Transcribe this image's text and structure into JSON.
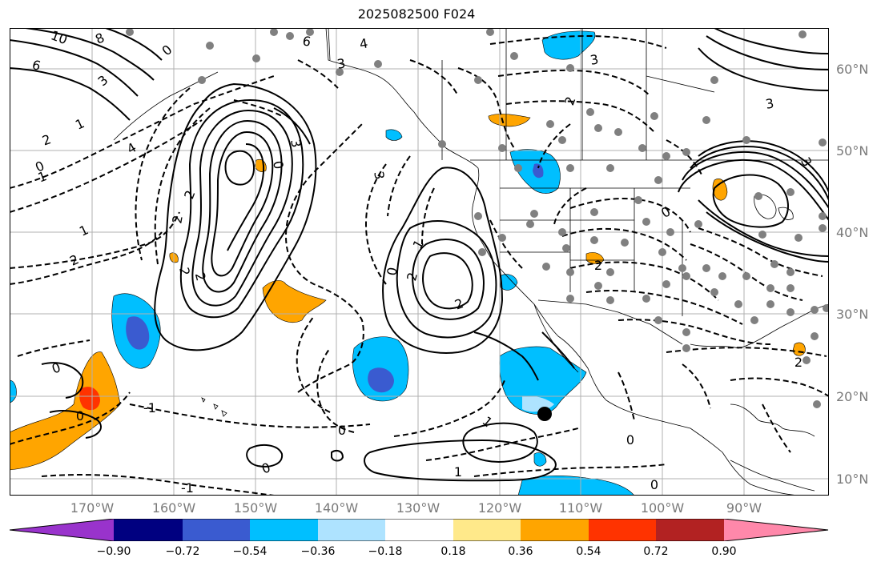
{
  "title": "2025082500 F024",
  "lat_labels": [
    "60°N",
    "50°N",
    "40°N",
    "30°N",
    "20°N",
    "10°N"
  ],
  "lon_labels": [
    "170°W",
    "160°W",
    "150°W",
    "140°W",
    "130°W",
    "120°W",
    "110°W",
    "100°W",
    "90°W"
  ],
  "colorbar": {
    "colors": [
      "#9933cc",
      "#000080",
      "#3a5bd0",
      "#00bfff",
      "#aee3ff",
      "#ffffff",
      "#ffe98a",
      "#ffa500",
      "#ff3300",
      "#b22222",
      "#ff88aa"
    ],
    "tick_labels": [
      "−0.90",
      "−0.72",
      "−0.54",
      "−0.36",
      "−0.18",
      "0.18",
      "0.36",
      "0.54",
      "0.72",
      "0.90"
    ]
  },
  "contour_labels": [
    "10",
    "8",
    "6",
    "4",
    "3",
    "2",
    "1",
    "0",
    "-1",
    "6",
    "4",
    "3",
    "0",
    "3",
    "2",
    "1",
    "0",
    "2",
    "2",
    "2",
    "2",
    "3",
    "1",
    "0",
    "2",
    "3",
    "2",
    "0",
    "0",
    "1",
    "-1",
    "0",
    "0",
    "1",
    "0",
    "2",
    "3",
    "3",
    "2",
    "2",
    "0",
    "-1",
    "0"
  ],
  "colors": {
    "coast": "#000000",
    "grid": "#b0b0b0",
    "points": "#808080",
    "marker": "#000000"
  }
}
